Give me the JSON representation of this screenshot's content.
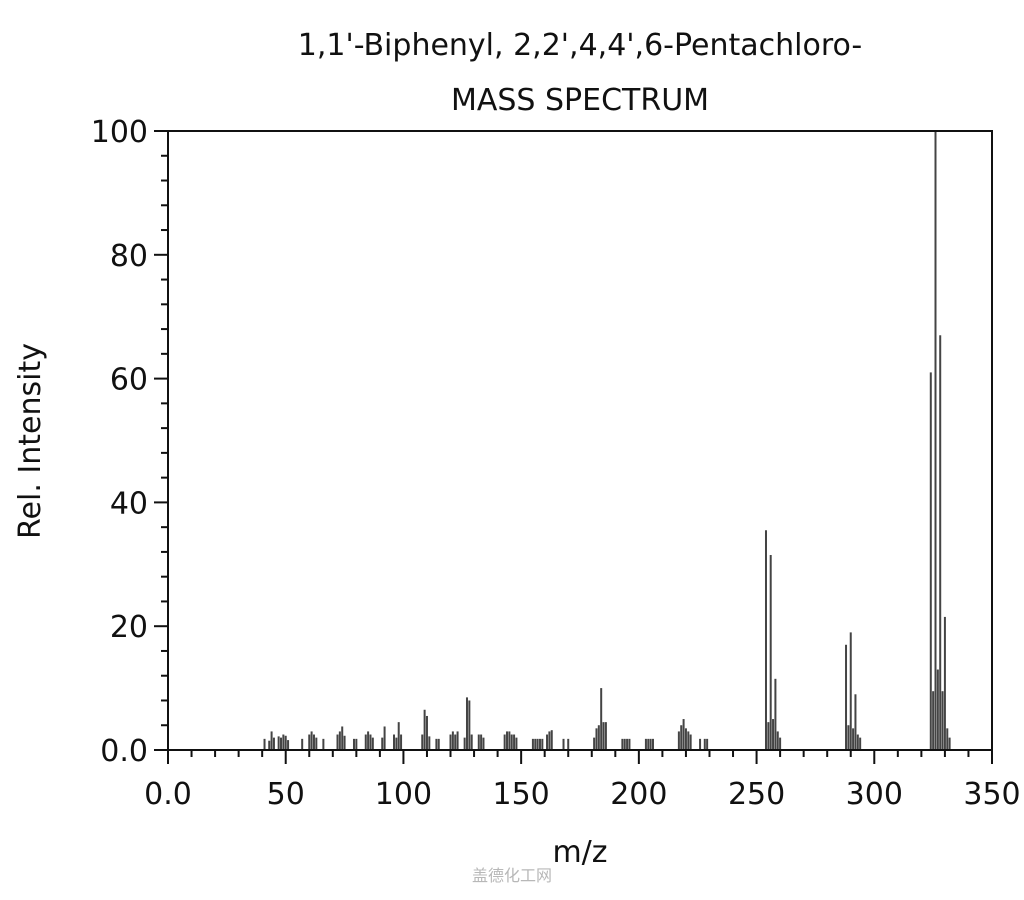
{
  "watermark": "盖德化工网",
  "chart_data": {
    "type": "bar",
    "title": "1,1'-Biphenyl, 2,2',4,4',6-Pentachloro-",
    "subtitle": "MASS SPECTRUM",
    "xlabel": "m/z",
    "ylabel": "Rel. Intensity",
    "xlim": [
      0,
      350
    ],
    "ylim": [
      0,
      100
    ],
    "x_ticks": [
      0,
      50,
      100,
      150,
      200,
      250,
      300,
      350
    ],
    "x_tick_labels": [
      "0.0",
      "50",
      "100",
      "150",
      "200",
      "250",
      "300",
      "350"
    ],
    "y_ticks": [
      0,
      20,
      40,
      60,
      80,
      100
    ],
    "y_tick_labels": [
      "0.0",
      "20",
      "40",
      "60",
      "80",
      "100"
    ],
    "grid": false,
    "bar_color": "#444444",
    "peaks": [
      {
        "mz": 41,
        "intensity": 1.8
      },
      {
        "mz": 43,
        "intensity": 1.5
      },
      {
        "mz": 44,
        "intensity": 3.0
      },
      {
        "mz": 45,
        "intensity": 2.0
      },
      {
        "mz": 47,
        "intensity": 2.2
      },
      {
        "mz": 48,
        "intensity": 2.0
      },
      {
        "mz": 49,
        "intensity": 2.5
      },
      {
        "mz": 50,
        "intensity": 2.3
      },
      {
        "mz": 51,
        "intensity": 1.6
      },
      {
        "mz": 57,
        "intensity": 1.8
      },
      {
        "mz": 60,
        "intensity": 2.5
      },
      {
        "mz": 61,
        "intensity": 3.0
      },
      {
        "mz": 62,
        "intensity": 2.5
      },
      {
        "mz": 63,
        "intensity": 2.0
      },
      {
        "mz": 66,
        "intensity": 1.8
      },
      {
        "mz": 72,
        "intensity": 2.5
      },
      {
        "mz": 73,
        "intensity": 3.0
      },
      {
        "mz": 74,
        "intensity": 3.8
      },
      {
        "mz": 75,
        "intensity": 2.3
      },
      {
        "mz": 79,
        "intensity": 1.8
      },
      {
        "mz": 80,
        "intensity": 1.8
      },
      {
        "mz": 84,
        "intensity": 2.5
      },
      {
        "mz": 85,
        "intensity": 3.0
      },
      {
        "mz": 86,
        "intensity": 2.5
      },
      {
        "mz": 87,
        "intensity": 2.0
      },
      {
        "mz": 91,
        "intensity": 2.0
      },
      {
        "mz": 92,
        "intensity": 3.8
      },
      {
        "mz": 96,
        "intensity": 2.5
      },
      {
        "mz": 97,
        "intensity": 2.0
      },
      {
        "mz": 98,
        "intensity": 4.5
      },
      {
        "mz": 99,
        "intensity": 2.5
      },
      {
        "mz": 108,
        "intensity": 2.5
      },
      {
        "mz": 109,
        "intensity": 6.5
      },
      {
        "mz": 110,
        "intensity": 5.5
      },
      {
        "mz": 111,
        "intensity": 2.2
      },
      {
        "mz": 114,
        "intensity": 1.8
      },
      {
        "mz": 115,
        "intensity": 1.8
      },
      {
        "mz": 120,
        "intensity": 2.5
      },
      {
        "mz": 121,
        "intensity": 3.0
      },
      {
        "mz": 122,
        "intensity": 2.5
      },
      {
        "mz": 123,
        "intensity": 3.0
      },
      {
        "mz": 126,
        "intensity": 2.0
      },
      {
        "mz": 127,
        "intensity": 8.5
      },
      {
        "mz": 128,
        "intensity": 8.0
      },
      {
        "mz": 129,
        "intensity": 2.5
      },
      {
        "mz": 132,
        "intensity": 2.5
      },
      {
        "mz": 133,
        "intensity": 2.5
      },
      {
        "mz": 134,
        "intensity": 2.0
      },
      {
        "mz": 143,
        "intensity": 2.5
      },
      {
        "mz": 144,
        "intensity": 3.0
      },
      {
        "mz": 145,
        "intensity": 3.0
      },
      {
        "mz": 146,
        "intensity": 2.5
      },
      {
        "mz": 147,
        "intensity": 2.5
      },
      {
        "mz": 148,
        "intensity": 2.0
      },
      {
        "mz": 155,
        "intensity": 1.8
      },
      {
        "mz": 156,
        "intensity": 1.8
      },
      {
        "mz": 157,
        "intensity": 1.8
      },
      {
        "mz": 158,
        "intensity": 1.8
      },
      {
        "mz": 159,
        "intensity": 1.8
      },
      {
        "mz": 161,
        "intensity": 2.5
      },
      {
        "mz": 162,
        "intensity": 3.0
      },
      {
        "mz": 163,
        "intensity": 3.2
      },
      {
        "mz": 168,
        "intensity": 1.8
      },
      {
        "mz": 170,
        "intensity": 1.8
      },
      {
        "mz": 181,
        "intensity": 2.0
      },
      {
        "mz": 182,
        "intensity": 3.5
      },
      {
        "mz": 183,
        "intensity": 4.0
      },
      {
        "mz": 184,
        "intensity": 10.0
      },
      {
        "mz": 185,
        "intensity": 4.5
      },
      {
        "mz": 186,
        "intensity": 4.5
      },
      {
        "mz": 193,
        "intensity": 1.8
      },
      {
        "mz": 194,
        "intensity": 1.8
      },
      {
        "mz": 195,
        "intensity": 1.8
      },
      {
        "mz": 196,
        "intensity": 1.8
      },
      {
        "mz": 203,
        "intensity": 1.8
      },
      {
        "mz": 204,
        "intensity": 1.8
      },
      {
        "mz": 205,
        "intensity": 1.8
      },
      {
        "mz": 206,
        "intensity": 1.8
      },
      {
        "mz": 217,
        "intensity": 3.0
      },
      {
        "mz": 218,
        "intensity": 4.0
      },
      {
        "mz": 219,
        "intensity": 5.0
      },
      {
        "mz": 220,
        "intensity": 3.5
      },
      {
        "mz": 221,
        "intensity": 3.0
      },
      {
        "mz": 222,
        "intensity": 2.5
      },
      {
        "mz": 226,
        "intensity": 1.8
      },
      {
        "mz": 228,
        "intensity": 1.8
      },
      {
        "mz": 229,
        "intensity": 1.8
      },
      {
        "mz": 254,
        "intensity": 35.5
      },
      {
        "mz": 255,
        "intensity": 4.5
      },
      {
        "mz": 256,
        "intensity": 31.5
      },
      {
        "mz": 257,
        "intensity": 5.0
      },
      {
        "mz": 258,
        "intensity": 11.5
      },
      {
        "mz": 259,
        "intensity": 3.0
      },
      {
        "mz": 260,
        "intensity": 2.0
      },
      {
        "mz": 288,
        "intensity": 17.0
      },
      {
        "mz": 289,
        "intensity": 4.0
      },
      {
        "mz": 290,
        "intensity": 19.0
      },
      {
        "mz": 291,
        "intensity": 3.5
      },
      {
        "mz": 292,
        "intensity": 9.0
      },
      {
        "mz": 293,
        "intensity": 2.5
      },
      {
        "mz": 294,
        "intensity": 2.0
      },
      {
        "mz": 324,
        "intensity": 61.0
      },
      {
        "mz": 325,
        "intensity": 9.5
      },
      {
        "mz": 326,
        "intensity": 100.0
      },
      {
        "mz": 327,
        "intensity": 13.0
      },
      {
        "mz": 328,
        "intensity": 67.0
      },
      {
        "mz": 329,
        "intensity": 9.5
      },
      {
        "mz": 330,
        "intensity": 21.5
      },
      {
        "mz": 331,
        "intensity": 3.5
      },
      {
        "mz": 332,
        "intensity": 2.0
      }
    ]
  }
}
